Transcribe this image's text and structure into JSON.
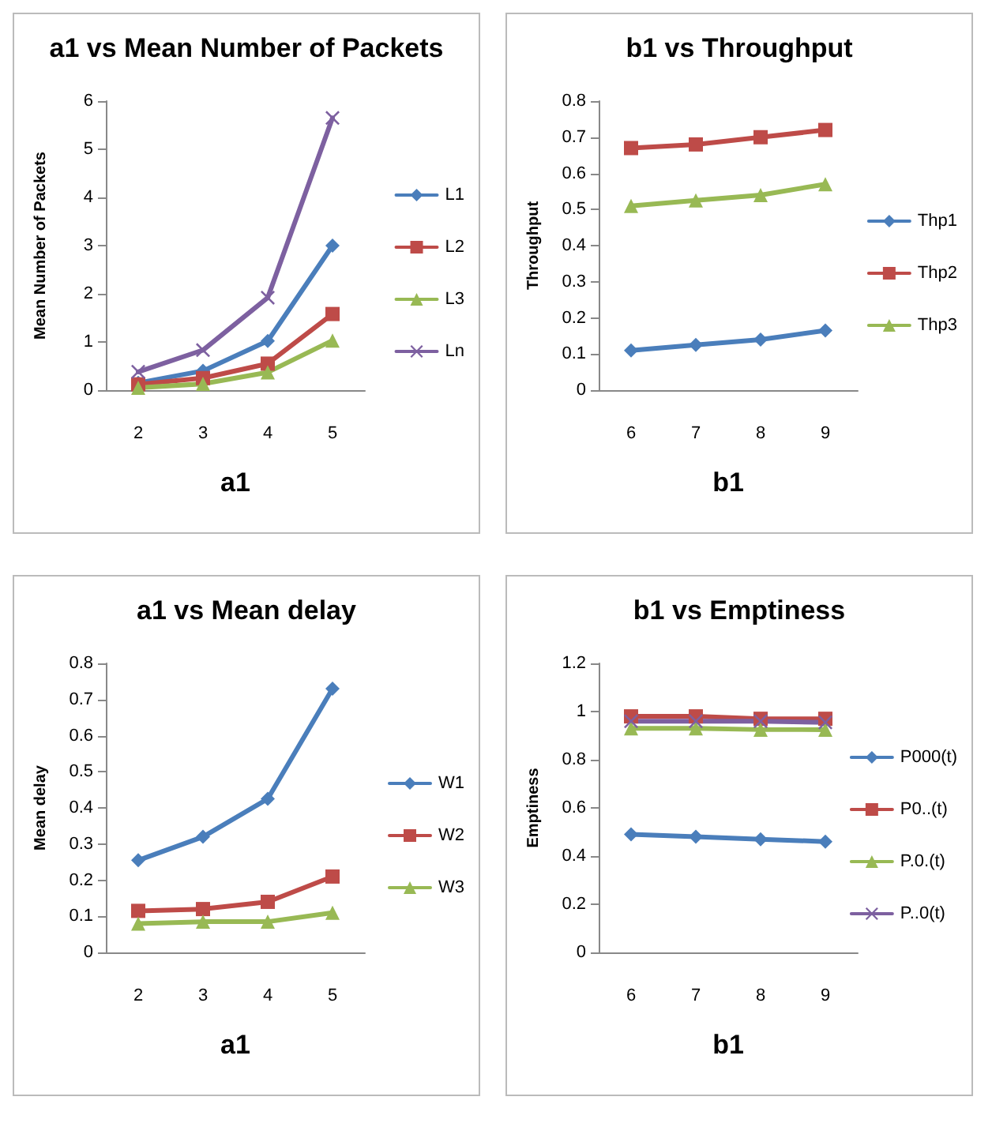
{
  "chart_data": [
    {
      "type": "line",
      "title": "a1 vs Mean Number of Packets",
      "xlabel": "a1",
      "ylabel": "Mean Number of Packets",
      "categories": [
        "2",
        "3",
        "4",
        "5"
      ],
      "ylim": [
        0,
        6
      ],
      "yticks": [
        0,
        1,
        2,
        3,
        4,
        5,
        6
      ],
      "legend": "right",
      "series": [
        {
          "name": "L1",
          "color": "#4a7ebb",
          "marker": "diamond",
          "values": [
            0.15,
            0.4,
            1.02,
            3.0
          ]
        },
        {
          "name": "L2",
          "color": "#be4b48",
          "marker": "square",
          "values": [
            0.12,
            0.25,
            0.55,
            1.58
          ]
        },
        {
          "name": "L3",
          "color": "#98b954",
          "marker": "triangle",
          "values": [
            0.05,
            0.13,
            0.37,
            1.03
          ]
        },
        {
          "name": "Ln",
          "color": "#7d60a0",
          "marker": "cross",
          "values": [
            0.38,
            0.83,
            1.92,
            5.65
          ]
        }
      ]
    },
    {
      "type": "line",
      "title": "b1 vs Throughput",
      "xlabel": "b1",
      "ylabel": "Throughput",
      "categories": [
        "6",
        "7",
        "8",
        "9"
      ],
      "ylim": [
        0,
        0.8
      ],
      "yticks": [
        0,
        0.1,
        0.2,
        0.3,
        0.4,
        0.5,
        0.6,
        0.7,
        0.8
      ],
      "legend": "right",
      "series": [
        {
          "name": "Thp1",
          "color": "#4a7ebb",
          "marker": "diamond",
          "values": [
            0.11,
            0.125,
            0.14,
            0.165
          ]
        },
        {
          "name": "Thp2",
          "color": "#be4b48",
          "marker": "square",
          "values": [
            0.67,
            0.68,
            0.7,
            0.72
          ]
        },
        {
          "name": "Thp3",
          "color": "#98b954",
          "marker": "triangle",
          "values": [
            0.51,
            0.525,
            0.54,
            0.57
          ]
        }
      ]
    },
    {
      "type": "line",
      "title": "a1 vs Mean delay",
      "xlabel": "a1",
      "ylabel": "Mean delay",
      "categories": [
        "2",
        "3",
        "4",
        "5"
      ],
      "ylim": [
        0,
        0.8
      ],
      "yticks": [
        0,
        0.1,
        0.2,
        0.3,
        0.4,
        0.5,
        0.6,
        0.7,
        0.8
      ],
      "legend": "right",
      "series": [
        {
          "name": "W1",
          "color": "#4a7ebb",
          "marker": "diamond",
          "values": [
            0.255,
            0.32,
            0.425,
            0.73
          ]
        },
        {
          "name": "W2",
          "color": "#be4b48",
          "marker": "square",
          "values": [
            0.115,
            0.12,
            0.14,
            0.21
          ]
        },
        {
          "name": "W3",
          "color": "#98b954",
          "marker": "triangle",
          "values": [
            0.08,
            0.085,
            0.085,
            0.11
          ]
        }
      ]
    },
    {
      "type": "line",
      "title": "b1 vs Emptiness",
      "xlabel": "b1",
      "ylabel": "Emptiness",
      "categories": [
        "6",
        "7",
        "8",
        "9"
      ],
      "ylim": [
        0,
        1.2
      ],
      "yticks": [
        0,
        0.2,
        0.4,
        0.6,
        0.8,
        1,
        1.2
      ],
      "legend": "right",
      "series": [
        {
          "name": "P000(t)",
          "color": "#4a7ebb",
          "marker": "diamond",
          "values": [
            0.49,
            0.48,
            0.47,
            0.46
          ]
        },
        {
          "name": "P0..(t)",
          "color": "#be4b48",
          "marker": "square",
          "values": [
            0.98,
            0.98,
            0.97,
            0.97
          ]
        },
        {
          "name": "P.0.(t)",
          "color": "#98b954",
          "marker": "triangle",
          "values": [
            0.93,
            0.93,
            0.925,
            0.925
          ]
        },
        {
          "name": "P..0(t)",
          "color": "#7d60a0",
          "marker": "cross",
          "values": [
            0.96,
            0.96,
            0.96,
            0.955
          ]
        }
      ]
    }
  ]
}
